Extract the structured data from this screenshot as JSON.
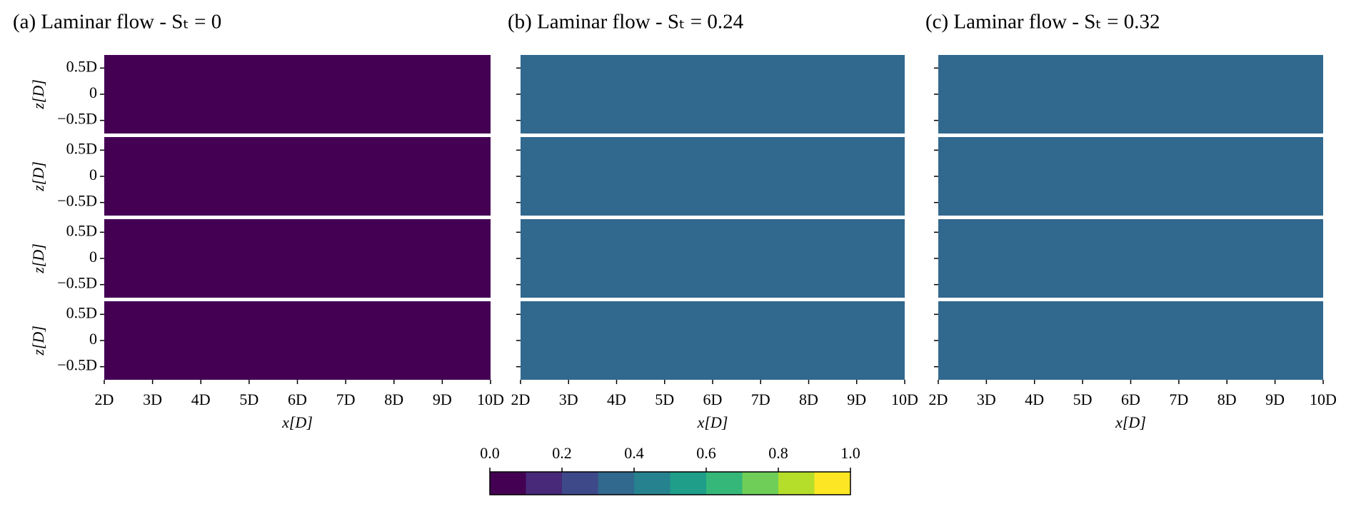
{
  "chart_data": [
    {
      "type": "contour",
      "title": "(a) Laminar flow - Sₜ = 0",
      "xlabel": "x[D]",
      "ylabel": "z[D]",
      "color": "#440154",
      "xlim": [
        2,
        10
      ],
      "xticks": [
        {
          "value": 2,
          "label": "2D"
        },
        {
          "value": 3,
          "label": "3D"
        },
        {
          "value": 4,
          "label": "4D"
        },
        {
          "value": 5,
          "label": "5D"
        },
        {
          "value": 6,
          "label": "6D"
        },
        {
          "value": 7,
          "label": "7D"
        },
        {
          "value": 8,
          "label": "8D"
        },
        {
          "value": 9,
          "label": "9D"
        },
        {
          "value": 10,
          "label": "10D"
        }
      ],
      "ylim": [
        -0.75,
        0.75
      ],
      "yticks": [
        {
          "value": 0.5,
          "label": "0.5D"
        },
        0,
        {
          "value": -0.5,
          "label": "−0.5D"
        }
      ],
      "rows": 4
    },
    {
      "type": "contour",
      "title": "(b) Laminar flow - Sₜ = 0.24",
      "xlabel": "x[D]",
      "color": "#31688e",
      "xlim": [
        2,
        10
      ],
      "xticks": [
        {
          "value": 2,
          "label": "2D"
        },
        {
          "value": 3,
          "label": "3D"
        },
        {
          "value": 4,
          "label": "4D"
        },
        {
          "value": 5,
          "label": "5D"
        },
        {
          "value": 6,
          "label": "6D"
        },
        {
          "value": 7,
          "label": "7D"
        },
        {
          "value": 8,
          "label": "8D"
        },
        {
          "value": 9,
          "label": "9D"
        },
        {
          "value": 10,
          "label": "10D"
        }
      ],
      "ylim": [
        -0.75,
        0.75
      ],
      "yticks": [
        0.5,
        0,
        -0.5
      ],
      "rows": 4
    },
    {
      "type": "contour",
      "title": "(c) Laminar flow - Sₜ = 0.32",
      "xlabel": "x[D]",
      "color": "#31688e",
      "xlim": [
        2,
        10
      ],
      "xticks": [
        {
          "value": 2,
          "label": "2D"
        },
        {
          "value": 3,
          "label": "3D"
        },
        {
          "value": 4,
          "label": "4D"
        },
        {
          "value": 5,
          "label": "5D"
        },
        {
          "value": 6,
          "label": "6D"
        },
        {
          "value": 7,
          "label": "7D"
        },
        {
          "value": 8,
          "label": "8D"
        },
        {
          "value": 9,
          "label": "9D"
        },
        {
          "value": 10,
          "label": "10D"
        }
      ],
      "ylim": [
        -0.75,
        0.75
      ],
      "yticks": [
        0.5,
        0,
        -0.5
      ],
      "rows": 4
    },
    {
      "type": "colorbar",
      "xlim": [
        0,
        1
      ],
      "xticks": [
        {
          "value": 0,
          "label": "0.0"
        },
        0.2,
        0.4,
        0.6,
        0.8,
        {
          "value": 1,
          "label": "1.0"
        }
      ],
      "colors": [
        "#440154",
        "#482878",
        "#3e4989",
        "#31688e",
        "#26828e",
        "#1f9e89",
        "#35b779",
        "#6ece58",
        "#b5de2b",
        "#fde725"
      ]
    }
  ]
}
